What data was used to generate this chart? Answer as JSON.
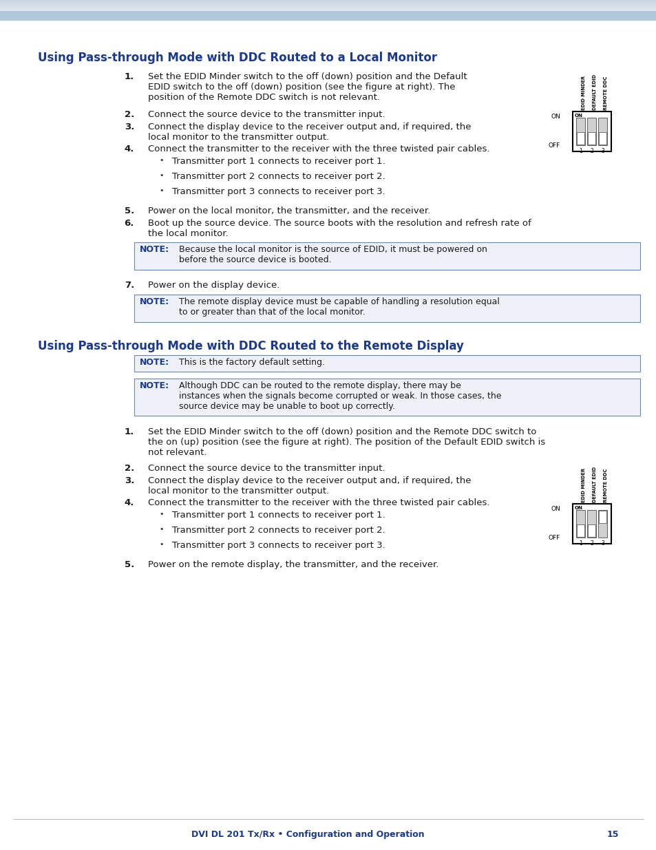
{
  "bg_color": "#ffffff",
  "header_bar_color": "#b8cfe0",
  "title1": "Using Pass-through Mode with DDC Routed to a Local Monitor",
  "title2": "Using Pass-through Mode with DDC Routed to the Remote Display",
  "title_color": "#1a3a8f",
  "body_color": "#000000",
  "note_label_color": "#1a3a8f",
  "footer_text": "DVI DL 201 Tx/Rx • Configuration and Operation",
  "footer_page": "15",
  "footer_color": "#1a3a8f",
  "section1_steps": [
    "Set the EDID Minder switch to the off (down) position and the Default\nEDID switch to the off (down) position (see the figure at right). The\nposition of the Remote DDC switch is not relevant.",
    "Connect the source device to the transmitter input.",
    "Connect the display device to the receiver output and, if required, the\nlocal monitor to the transmitter output.",
    "Connect the transmitter to the receiver with the three twisted pair cables.",
    "Power on the local monitor, the transmitter, and the receiver.",
    "Boot up the source device. The source boots with the resolution and refresh rate of\nthe local monitor.",
    "Power on the display device."
  ],
  "section1_bullets": [
    "Transmitter port 1 connects to receiver port 1.",
    "Transmitter port 2 connects to receiver port 2.",
    "Transmitter port 3 connects to receiver port 3."
  ],
  "section1_note1": "Because the local monitor is the source of EDID, it must be powered on\nbefore the source device is booted.",
  "section1_note2": "The remote display device must be capable of handling a resolution equal\nto or greater than that of the local monitor.",
  "section2_note1": "This is the factory default setting.",
  "section2_note2": "Although DDC can be routed to the remote display, there may be\ninstances when the signals become corrupted or weak. In those cases, the\nsource device may be unable to boot up correctly.",
  "section2_steps": [
    "Set the EDID Minder switch to the off (down) position and the Remote DDC switch to\nthe on (up) position (see the figure at right). The position of the Default EDID switch is\nnot relevant.",
    "Connect the source device to the transmitter input.",
    "Connect the display device to the receiver output and, if required, the\nlocal monitor to the transmitter output.",
    "Connect the transmitter to the receiver with the three twisted pair cables.",
    "Power on the remote display, the transmitter, and the receiver."
  ],
  "section2_bullets": [
    "Transmitter port 1 connects to receiver port 1.",
    "Transmitter port 2 connects to receiver port 2.",
    "Transmitter port 3 connects to receiver port 3."
  ],
  "dip1_states": [
    false,
    false,
    false
  ],
  "dip2_states": [
    false,
    false,
    true
  ],
  "dip_labels": [
    "EDID MINDER",
    "DEFAULT EDID",
    "REMOTE DDC"
  ]
}
